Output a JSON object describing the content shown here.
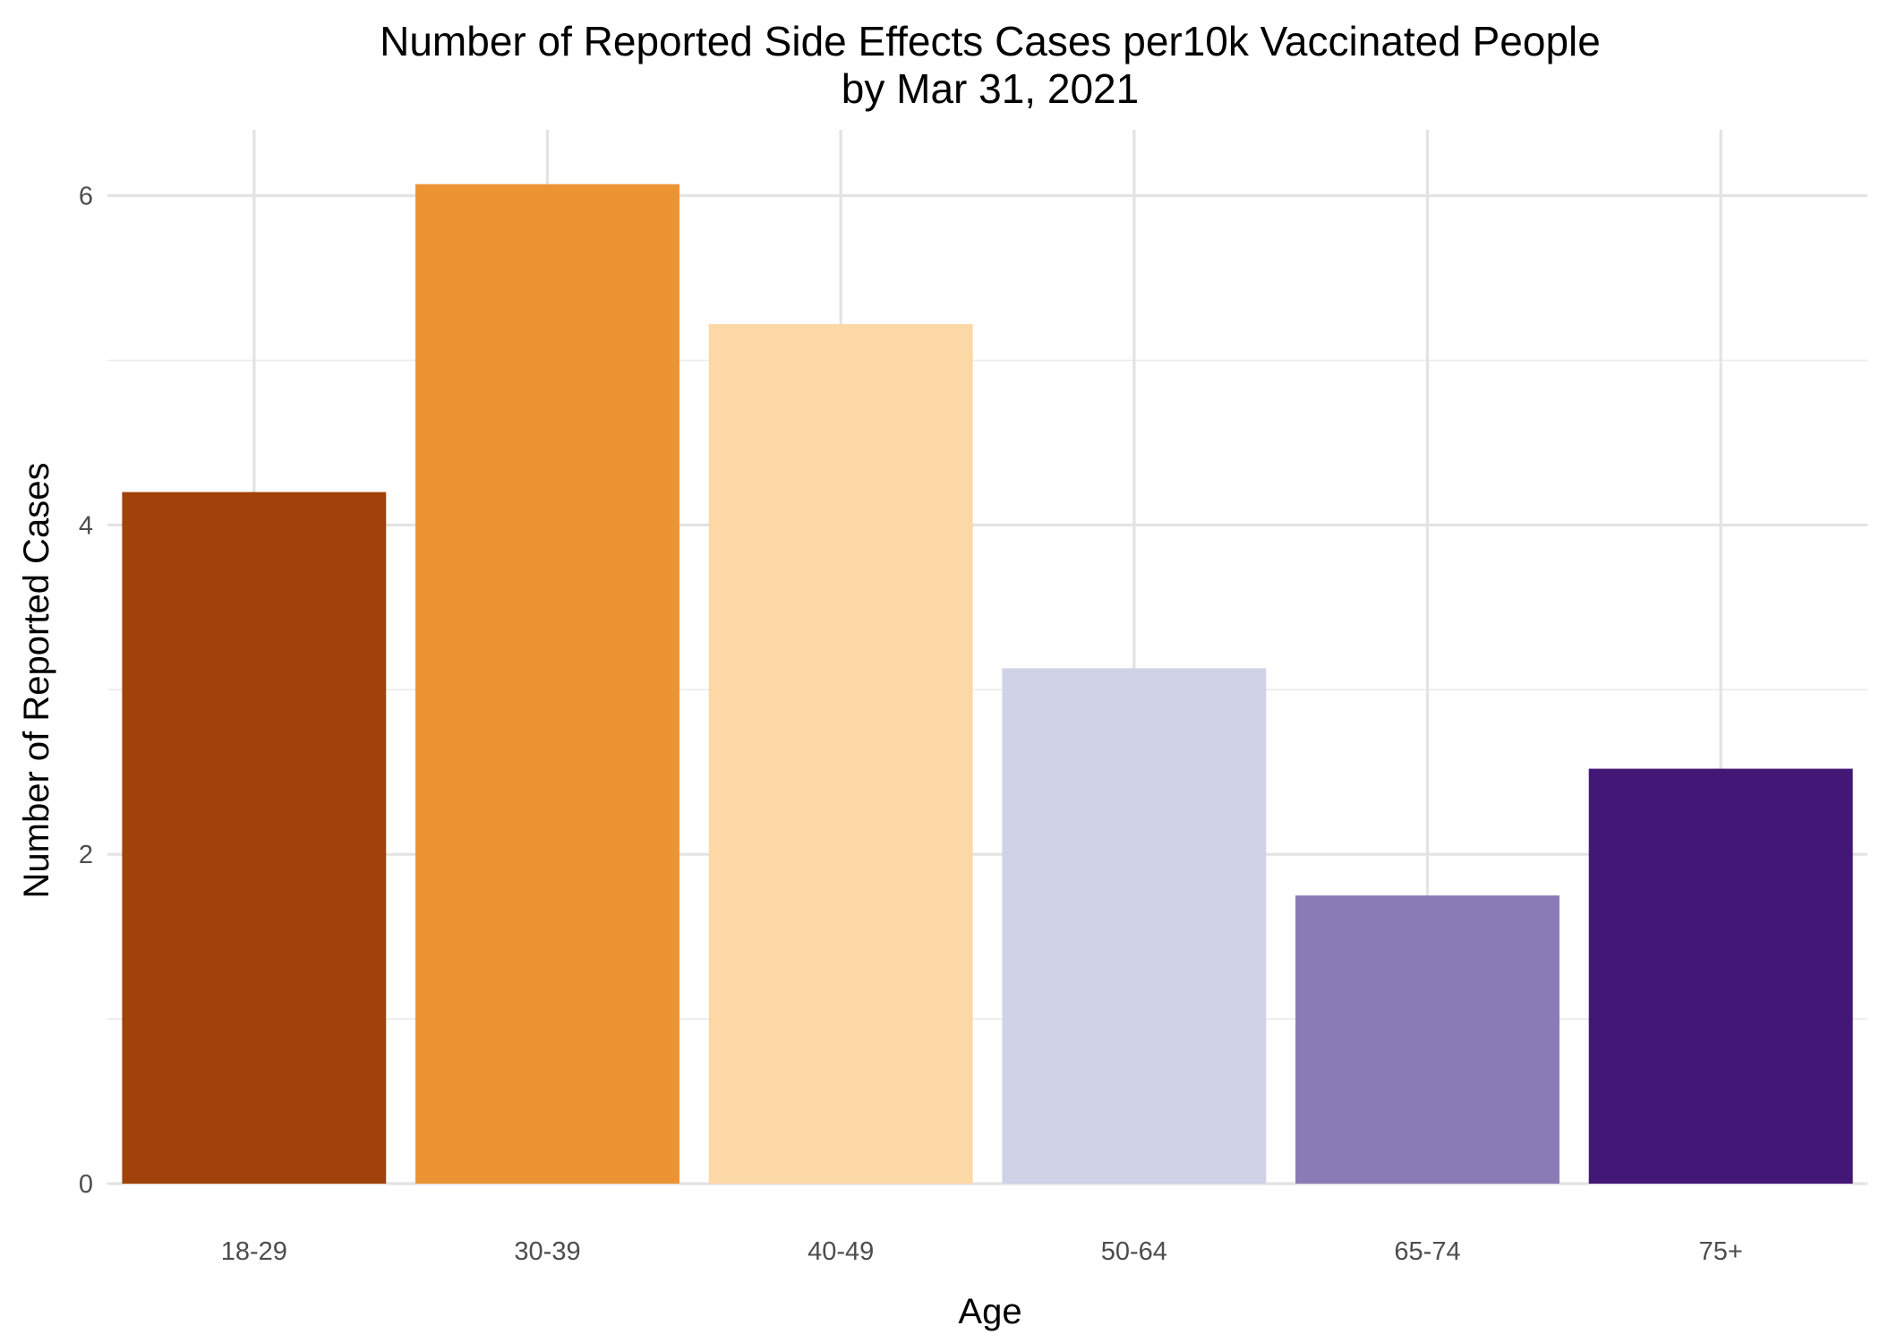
{
  "chart_data": {
    "type": "bar",
    "title_lines": [
      "Number of Reported Side Effects Cases per10k Vaccinated People",
      "by Mar 31, 2021"
    ],
    "xlabel": "Age",
    "ylabel": "Number of Reported Cases",
    "categories": [
      "18-29",
      "30-39",
      "40-49",
      "50-64",
      "65-74",
      "75+"
    ],
    "values": [
      4.2,
      6.07,
      5.22,
      3.13,
      1.75,
      2.52
    ],
    "colors": [
      "#A1420A",
      "#EC9434",
      "#FCD8A6",
      "#D0D2E7",
      "#8A7BB7",
      "#431776"
    ],
    "ylim": [
      0,
      6.4
    ],
    "y_major_ticks": [
      0,
      2,
      4,
      6
    ],
    "y_minor_ticks": [
      1,
      3,
      5
    ],
    "legend": "none",
    "grid": true
  }
}
